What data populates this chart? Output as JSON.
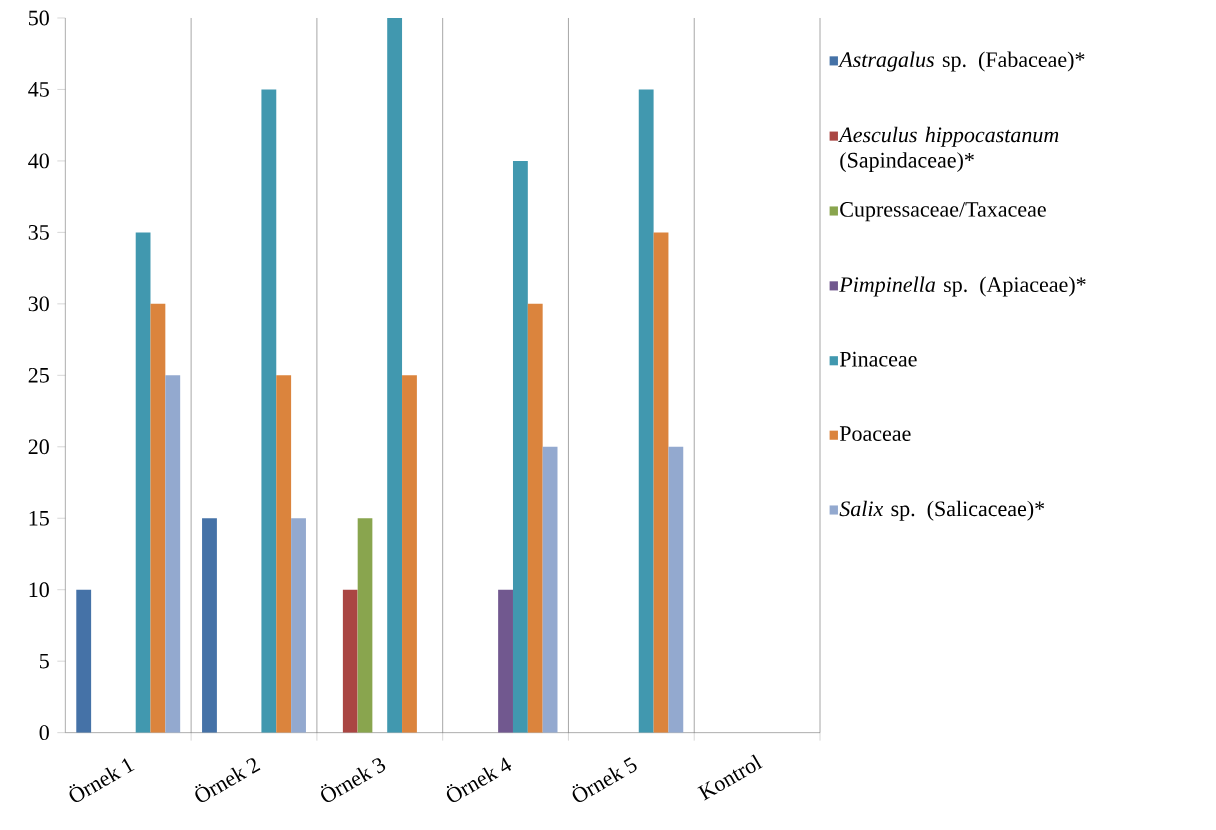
{
  "chart_data": {
    "type": "bar",
    "categories": [
      "Örnek 1",
      "Örnek 2",
      "Örnek 3",
      "Örnek 4",
      "Örnek 5",
      "Kontrol"
    ],
    "series": [
      {
        "name": "*Astragalus* sp. (Fabaceae)*",
        "color": "#4572a7",
        "values": [
          10,
          15,
          null,
          null,
          null,
          null
        ]
      },
      {
        "name": "*Aesculus hippocastanum* (Sapindaceae)*",
        "color": "#aa4643",
        "values": [
          null,
          null,
          10,
          null,
          null,
          null
        ]
      },
      {
        "name": "Cupressaceae/Taxaceae",
        "color": "#89a54e",
        "values": [
          null,
          null,
          15,
          null,
          null,
          null
        ]
      },
      {
        "name": "*Pimpinella* sp. (Apiaceae)*",
        "color": "#71588f",
        "values": [
          null,
          null,
          null,
          10,
          null,
          null
        ]
      },
      {
        "name": "Pinaceae",
        "color": "#4198af",
        "values": [
          35,
          45,
          50,
          40,
          45,
          null
        ]
      },
      {
        "name": "Poaceae",
        "color": "#db843d",
        "values": [
          30,
          25,
          25,
          30,
          35,
          null
        ]
      },
      {
        "name": "*Salix* sp. (Salicaceae)*",
        "color": "#93a9cf",
        "values": [
          25,
          15,
          null,
          20,
          20,
          null
        ]
      }
    ],
    "ylim": [
      0,
      50
    ],
    "yticks": [
      0,
      5,
      10,
      15,
      20,
      25,
      30,
      35,
      40,
      45,
      50
    ],
    "grid": "x",
    "legend": "right"
  }
}
